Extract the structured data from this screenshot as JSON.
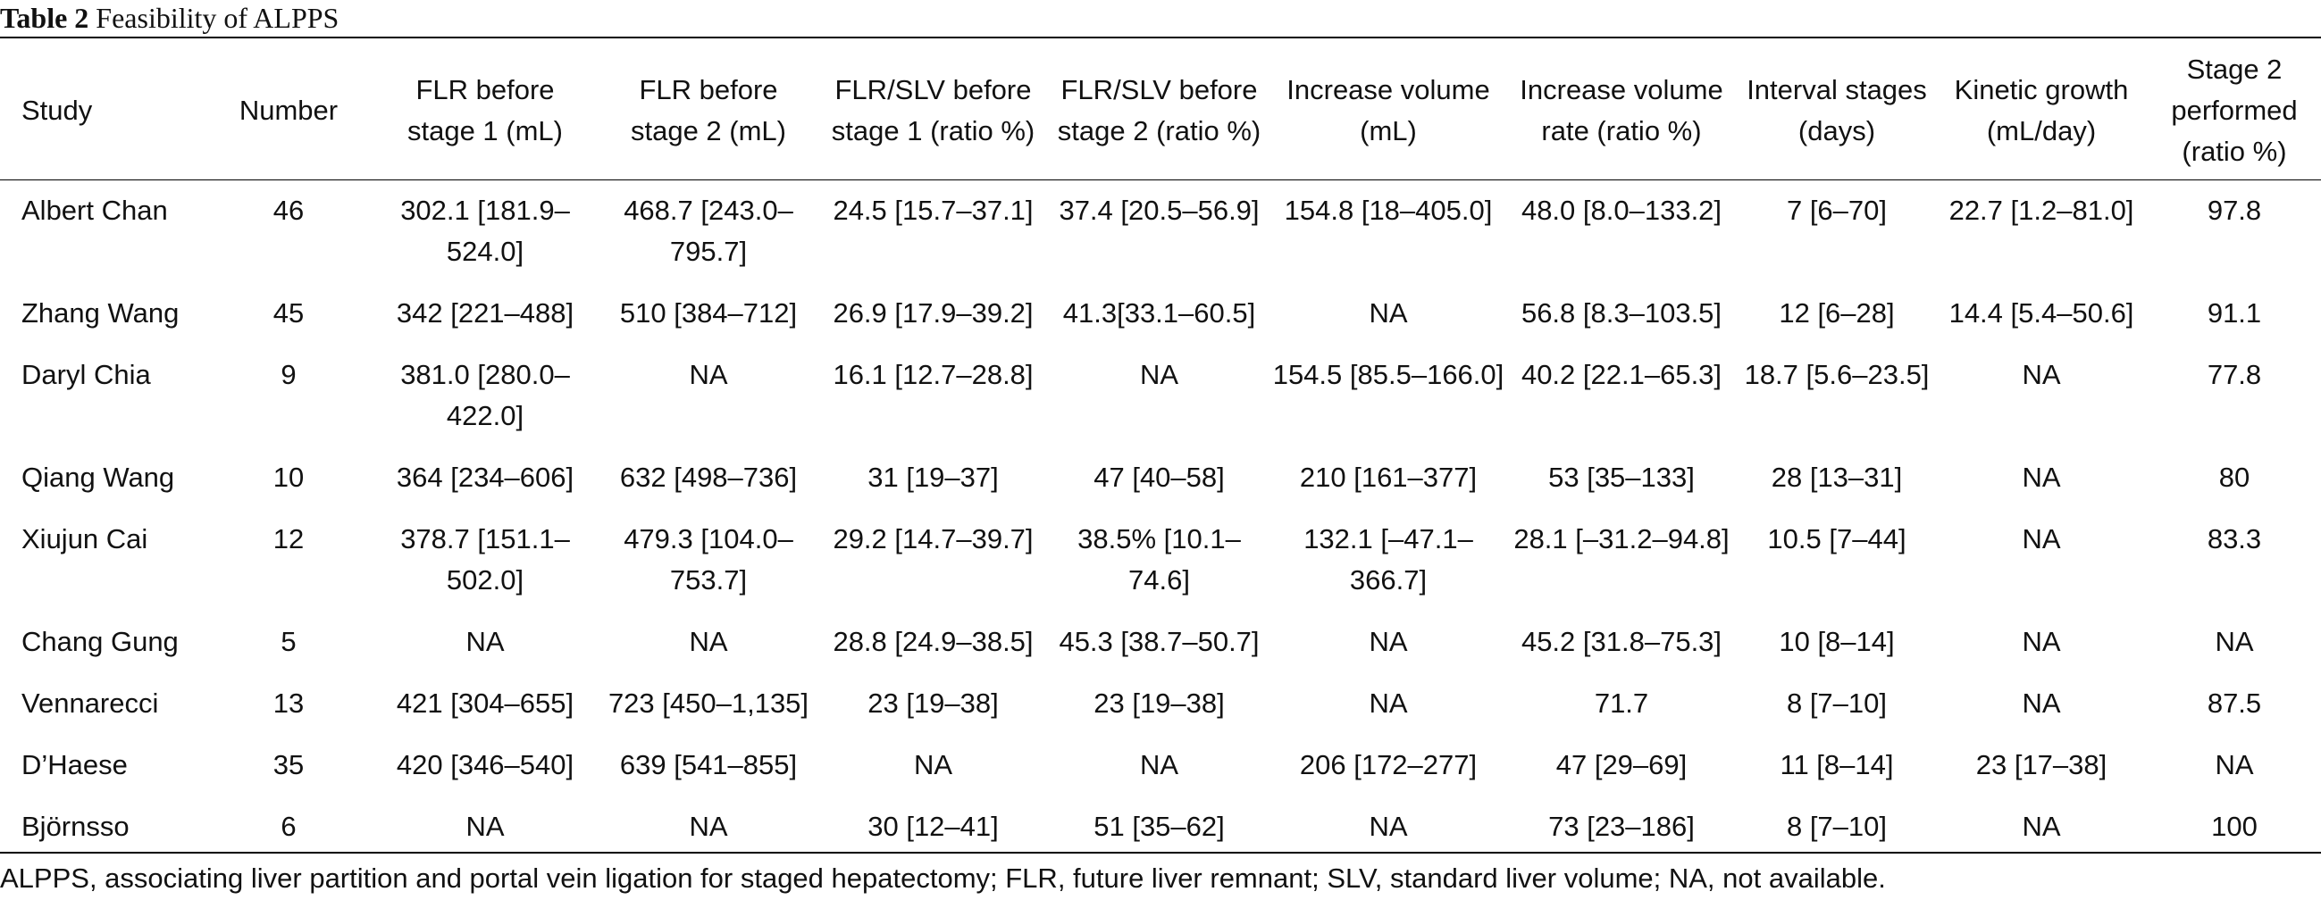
{
  "caption": {
    "label": "Table 2",
    "title": "Feasibility of ALPPS"
  },
  "headers": [
    [
      "Study"
    ],
    [
      "Number"
    ],
    [
      "FLR before",
      "stage 1 (mL)"
    ],
    [
      "FLR before",
      "stage 2 (mL)"
    ],
    [
      "FLR/SLV before",
      "stage 1 (ratio %)"
    ],
    [
      "FLR/SLV before",
      "stage 2 (ratio %)"
    ],
    [
      "Increase volume",
      "(mL)"
    ],
    [
      "Increase volume",
      "rate (ratio %)"
    ],
    [
      "Interval stages",
      "(days)"
    ],
    [
      "Kinetic growth",
      "(mL/day)"
    ],
    [
      "Stage 2",
      "performed",
      "(ratio %)"
    ]
  ],
  "rows": [
    {
      "study": "Albert Chan",
      "number": "46",
      "flr_s1": [
        "302.1 [181.9–",
        "524.0]"
      ],
      "flr_s2": [
        "468.7 [243.0–",
        "795.7]"
      ],
      "ratio_s1": "24.5 [15.7–37.1]",
      "ratio_s2": "37.4 [20.5–56.9]",
      "inc_vol": "154.8 [18–405.0]",
      "inc_rate": "48.0 [8.0–133.2]",
      "interval": "7 [6–70]",
      "kinetic": "22.7 [1.2–81.0]",
      "stage2": "97.8"
    },
    {
      "study": "Zhang Wang",
      "number": "45",
      "flr_s1": [
        "342 [221–488]"
      ],
      "flr_s2": [
        "510 [384–712]"
      ],
      "ratio_s1": "26.9 [17.9–39.2]",
      "ratio_s2": "41.3[33.1–60.5]",
      "inc_vol": "NA",
      "inc_rate": "56.8 [8.3–103.5]",
      "interval": "12 [6–28]",
      "kinetic": "14.4 [5.4–50.6]",
      "stage2": "91.1"
    },
    {
      "study": "Daryl Chia",
      "number": "9",
      "flr_s1": [
        "381.0 [280.0–",
        "422.0]"
      ],
      "flr_s2": [
        "NA"
      ],
      "ratio_s1": "16.1 [12.7–28.8]",
      "ratio_s2": "NA",
      "inc_vol": "154.5 [85.5–166.0]",
      "inc_rate": "40.2 [22.1–65.3]",
      "interval": "18.7 [5.6–23.5]",
      "kinetic": "NA",
      "stage2": "77.8"
    },
    {
      "study": "Qiang Wang",
      "number": "10",
      "flr_s1": [
        "364 [234–606]"
      ],
      "flr_s2": [
        "632 [498–736]"
      ],
      "ratio_s1": "31 [19–37]",
      "ratio_s2": "47 [40–58]",
      "inc_vol": "210 [161–377]",
      "inc_rate": "53 [35–133]",
      "interval": "28 [13–31]",
      "kinetic": "NA",
      "stage2": "80"
    },
    {
      "study": "Xiujun Cai",
      "number": "12",
      "flr_s1": [
        "378.7 [151.1–",
        "502.0]"
      ],
      "flr_s2": [
        "479.3 [104.0–",
        "753.7]"
      ],
      "ratio_s1": "29.2 [14.7–39.7]",
      "ratio_s2": [
        "38.5% [10.1–",
        "74.6]"
      ],
      "inc_vol": [
        "132.1 [–47.1–",
        "366.7]"
      ],
      "inc_rate": "28.1 [–31.2–94.8]",
      "interval": "10.5 [7–44]",
      "kinetic": "NA",
      "stage2": "83.3"
    },
    {
      "study": "Chang Gung",
      "number": "5",
      "flr_s1": [
        "NA"
      ],
      "flr_s2": [
        "NA"
      ],
      "ratio_s1": "28.8 [24.9–38.5]",
      "ratio_s2": "45.3 [38.7–50.7]",
      "inc_vol": "NA",
      "inc_rate": "45.2 [31.8–75.3]",
      "interval": "10 [8–14]",
      "kinetic": "NA",
      "stage2": "NA"
    },
    {
      "study": "Vennarecci",
      "number": "13",
      "flr_s1": [
        "421 [304–655]"
      ],
      "flr_s2": [
        "723 [450–1,135]"
      ],
      "ratio_s1": "23 [19–38]",
      "ratio_s2": "23 [19–38]",
      "inc_vol": "NA",
      "inc_rate": "71.7",
      "interval": "8 [7–10]",
      "kinetic": "NA",
      "stage2": "87.5"
    },
    {
      "study": "D’Haese",
      "number": "35",
      "flr_s1": [
        "420 [346–540]"
      ],
      "flr_s2": [
        "639 [541–855]"
      ],
      "ratio_s1": "NA",
      "ratio_s2": "NA",
      "inc_vol": "206 [172–277]",
      "inc_rate": "47 [29–69]",
      "interval": "11 [8–14]",
      "kinetic": "23 [17–38]",
      "stage2": "NA"
    },
    {
      "study": "Björnsso",
      "number": "6",
      "flr_s1": [
        "NA"
      ],
      "flr_s2": [
        "NA"
      ],
      "ratio_s1": "30 [12–41]",
      "ratio_s2": "51 [35–62]",
      "inc_vol": "NA",
      "inc_rate": "73 [23–186]",
      "interval": "8 [7–10]",
      "kinetic": "NA",
      "stage2": "100"
    }
  ],
  "footnote": "ALPPS, associating liver partition and portal vein ligation for staged hepatectomy; FLR, future liver remnant; SLV, standard liver volume; NA, not available."
}
